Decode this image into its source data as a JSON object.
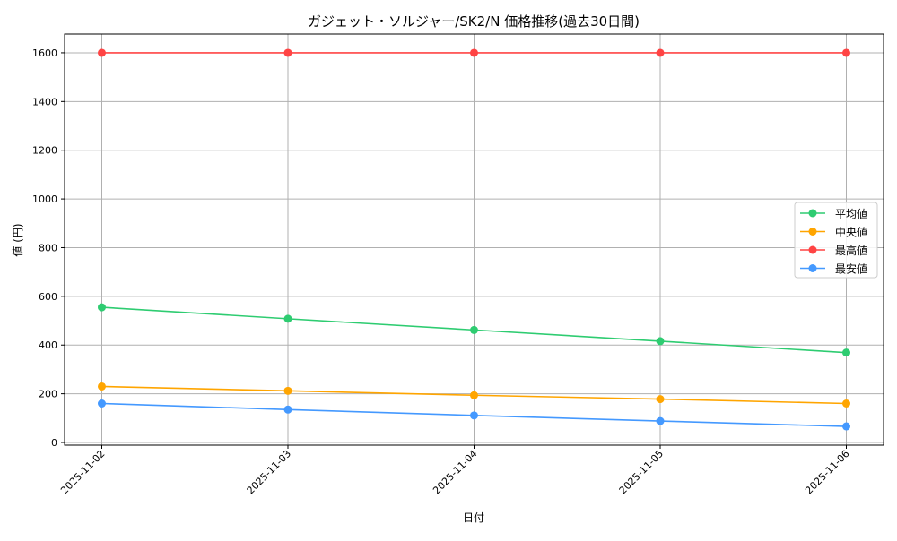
{
  "chart_data": {
    "type": "line",
    "title": "ガジェット・ソルジャー/SK2/N 価格推移(過去30日間)",
    "xlabel": "日付",
    "ylabel": "値 (円)",
    "categories": [
      "2025-11-02",
      "2025-11-03",
      "2025-11-04",
      "2025-11-05",
      "2025-11-06"
    ],
    "ylim": [
      -11,
      1677
    ],
    "yticks": [
      0,
      200,
      400,
      600,
      800,
      1000,
      1200,
      1400,
      1600
    ],
    "grid": true,
    "legend_position": "center-right",
    "series": [
      {
        "name": "平均値",
        "color": "#2ecc71",
        "values": [
          555,
          508,
          462,
          416,
          369
        ]
      },
      {
        "name": "中央値",
        "color": "#ffa500",
        "values": [
          230,
          212,
          194,
          178,
          160
        ]
      },
      {
        "name": "最高値",
        "color": "#ff4444",
        "values": [
          1600,
          1600,
          1600,
          1600,
          1600
        ]
      },
      {
        "name": "最安値",
        "color": "#4499ff",
        "values": [
          160,
          135,
          111,
          88,
          66
        ]
      }
    ]
  }
}
